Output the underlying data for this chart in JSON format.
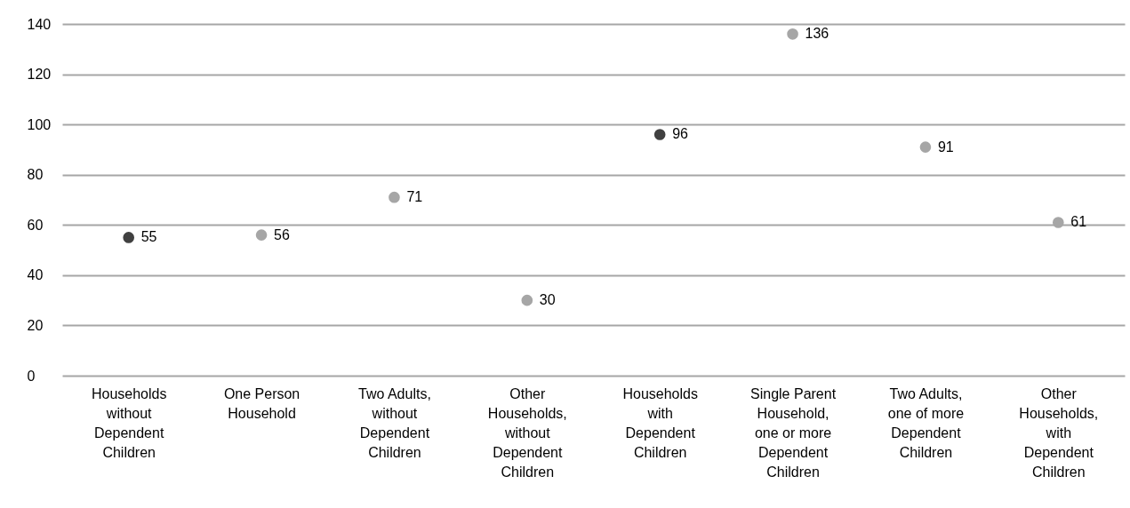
{
  "chart_data": {
    "type": "scatter",
    "categories": [
      "Households without Dependent Children",
      "One Person Household",
      "Two Adults, without Dependent Children",
      "Other Households, without Dependent Children",
      "Households with Dependent Children",
      "Single Parent Household, one or more Dependent Children",
      "Two Adults, one of more Dependent Children",
      "Other Households, with Dependent Children"
    ],
    "values": [
      55,
      56,
      71,
      30,
      96,
      136,
      91,
      61
    ],
    "colors": [
      "#404040",
      "#a6a6a6",
      "#a6a6a6",
      "#a6a6a6",
      "#404040",
      "#a6a6a6",
      "#a6a6a6",
      "#a6a6a6"
    ],
    "ylim": [
      0,
      140
    ],
    "yticks": [
      0,
      20,
      40,
      60,
      80,
      100,
      120,
      140
    ],
    "grid": "y",
    "marker": "circle",
    "data_labels": true
  }
}
